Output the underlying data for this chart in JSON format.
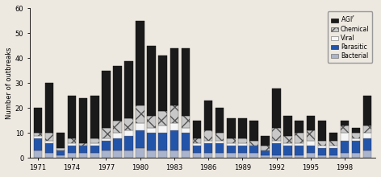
{
  "years": [
    1971,
    1972,
    1973,
    1974,
    1975,
    1976,
    1977,
    1978,
    1979,
    1980,
    1981,
    1982,
    1983,
    1984,
    1985,
    1986,
    1987,
    1988,
    1989,
    1990,
    1991,
    1992,
    1993,
    1994,
    1995,
    1996,
    1997,
    1998,
    1999,
    2000
  ],
  "bacterial": [
    3,
    2,
    1,
    2,
    2,
    2,
    3,
    3,
    3,
    4,
    3,
    3,
    3,
    3,
    2,
    2,
    2,
    2,
    2,
    2,
    1,
    1,
    1,
    1,
    2,
    1,
    1,
    2,
    2,
    3
  ],
  "parasitic": [
    5,
    4,
    2,
    3,
    3,
    3,
    4,
    5,
    6,
    7,
    7,
    7,
    8,
    7,
    3,
    4,
    4,
    3,
    3,
    3,
    2,
    5,
    4,
    4,
    3,
    3,
    3,
    5,
    5,
    5
  ],
  "viral": [
    1,
    1,
    0,
    1,
    0,
    1,
    1,
    2,
    2,
    3,
    2,
    3,
    3,
    2,
    1,
    1,
    1,
    1,
    1,
    0,
    0,
    1,
    1,
    1,
    2,
    1,
    1,
    3,
    1,
    2
  ],
  "chemical": [
    1,
    3,
    1,
    2,
    1,
    2,
    4,
    5,
    5,
    7,
    5,
    6,
    7,
    5,
    2,
    4,
    3,
    2,
    2,
    2,
    2,
    5,
    3,
    4,
    4,
    2,
    2,
    3,
    2,
    3
  ],
  "agi": [
    10,
    20,
    6,
    17,
    18,
    17,
    23,
    22,
    23,
    34,
    28,
    22,
    23,
    27,
    7,
    12,
    10,
    8,
    8,
    8,
    4,
    16,
    8,
    5,
    6,
    8,
    3,
    2,
    2,
    12
  ],
  "colors": {
    "bacterial": "#aab4cc",
    "parasitic": "#2255aa",
    "viral": "#f5f5f5",
    "chemical_face": "#c8c8c8",
    "agi": "#1a1a1a"
  },
  "chemical_hatch": "xx",
  "ylabel": "Number of outbreaks",
  "ylim": [
    0,
    60
  ],
  "yticks": [
    0,
    10,
    20,
    30,
    40,
    50,
    60
  ],
  "xtick_labels": [
    "1971",
    "1974",
    "1977",
    "1980",
    "1983",
    "1986",
    "1989",
    "1992",
    "1995",
    "1998"
  ],
  "xtick_positions": [
    1971,
    1974,
    1977,
    1980,
    1983,
    1986,
    1989,
    1992,
    1995,
    1998
  ],
  "background_color": "#ede8e0",
  "bar_width": 0.75
}
